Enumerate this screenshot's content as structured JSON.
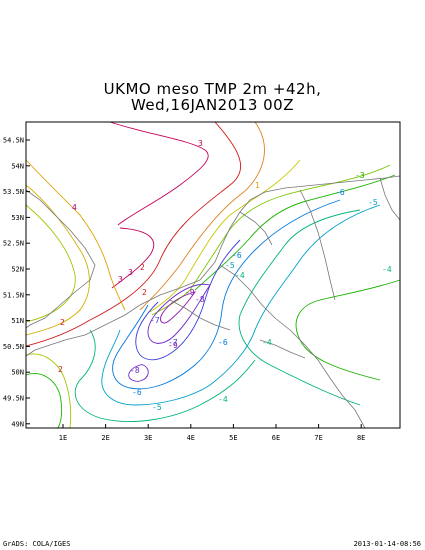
{
  "title": {
    "line1": "UKMO meso TMP 2m +42h,",
    "line2": "Wed,16JAN2013 00Z"
  },
  "axes": {
    "lat_labels": [
      "54.5N",
      "54N",
      "53.5N",
      "53N",
      "52.5N",
      "52N",
      "51.5N",
      "51N",
      "50.5N",
      "50N",
      "49.5N",
      "49N"
    ],
    "lon_labels": [
      "1E",
      "2E",
      "3E",
      "4E",
      "5E",
      "6E",
      "7E",
      "8E"
    ]
  },
  "contour_labels": [
    {
      "text": "3",
      "color": "#c0005a"
    },
    {
      "text": "3",
      "color": "#c0005a"
    },
    {
      "text": "3",
      "color": "#c0005a"
    },
    {
      "text": "2",
      "color": "#d01818"
    },
    {
      "text": "2",
      "color": "#d01818"
    },
    {
      "text": "2",
      "color": "#d01818"
    },
    {
      "text": "2",
      "color": "#d01818"
    },
    {
      "text": "1",
      "color": "#e0a000"
    },
    {
      "text": "4",
      "color": "#a00080"
    },
    {
      "text": "-3",
      "color": "#1ab400"
    },
    {
      "text": "-4",
      "color": "#00b478"
    },
    {
      "text": "-4",
      "color": "#00b478"
    },
    {
      "text": "-4",
      "color": "#00b478"
    },
    {
      "text": "-4",
      "color": "#00b478"
    },
    {
      "text": "-5",
      "color": "#00a0c8"
    },
    {
      "text": "-5",
      "color": "#00a0c8"
    },
    {
      "text": "-5",
      "color": "#00a0c8"
    },
    {
      "text": "-6",
      "color": "#0078dc"
    },
    {
      "text": "-6",
      "color": "#0078dc"
    },
    {
      "text": "-6",
      "color": "#0078dc"
    },
    {
      "text": "-6",
      "color": "#0078dc"
    },
    {
      "text": "-7",
      "color": "#3c3cdc"
    },
    {
      "text": "-7",
      "color": "#3c3cdc"
    },
    {
      "text": "-8",
      "color": "#6e28c8"
    },
    {
      "text": "-8",
      "color": "#6e28c8"
    },
    {
      "text": "-9",
      "color": "#8c14b4"
    },
    {
      "text": "-9",
      "color": "#8c14b4"
    }
  ],
  "footer": {
    "left": "GrADS: COLA/IGES",
    "right": "2013-01-14-08:56"
  }
}
